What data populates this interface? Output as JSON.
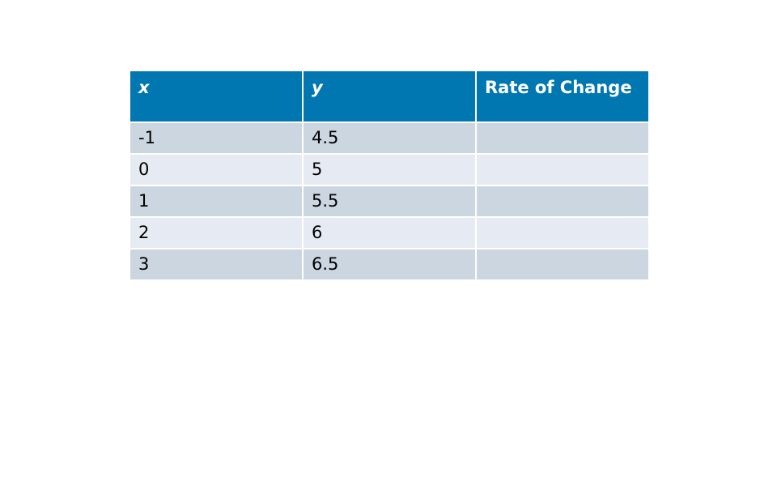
{
  "table": {
    "headers": [
      "x",
      "y",
      "Rate of Change"
    ],
    "rows": [
      [
        "-1",
        "4.5",
        ""
      ],
      [
        "0",
        "5",
        ""
      ],
      [
        "1",
        "5.5",
        ""
      ],
      [
        "2",
        "6",
        ""
      ],
      [
        "3",
        "6.5",
        ""
      ]
    ]
  },
  "colors": {
    "header_background": "#0077b0",
    "header_text": "#ffffff",
    "row_odd": "#cbd6e1",
    "row_even": "#e6ebf3"
  }
}
